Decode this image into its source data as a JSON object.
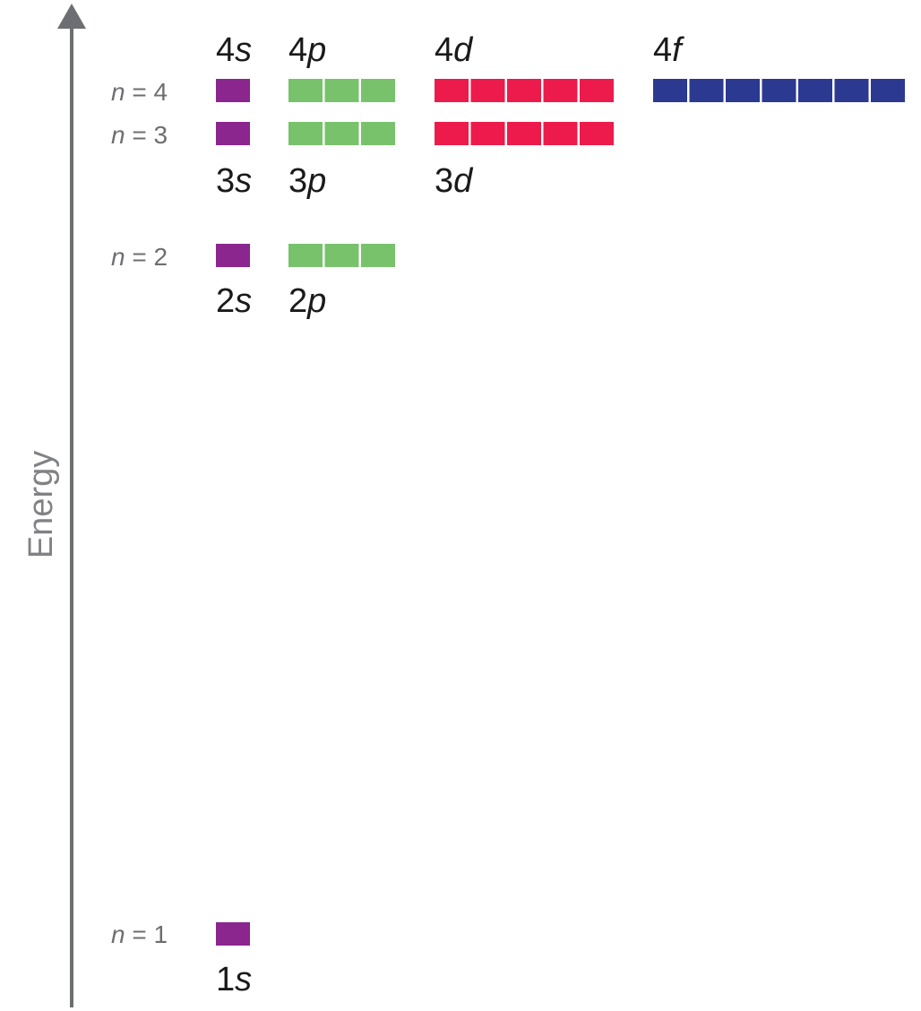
{
  "axis": {
    "title": "Energy"
  },
  "colors": {
    "axis": "#6d6e71",
    "s": "#8b268e",
    "p": "#78c26c",
    "d": "#ec1b4b",
    "f": "#2b3990"
  },
  "levels": [
    {
      "n": "4",
      "label_var": "n",
      "label_eq": " = 4"
    },
    {
      "n": "3",
      "label_var": "n",
      "label_eq": " = 3"
    },
    {
      "n": "2",
      "label_var": "n",
      "label_eq": " = 2"
    },
    {
      "n": "1",
      "label_var": "n",
      "label_eq": " = 1"
    }
  ],
  "subshells": [
    {
      "name": "4s",
      "n": "4",
      "l": "s",
      "orbitals": 1
    },
    {
      "name": "4p",
      "n": "4",
      "l": "p",
      "orbitals": 3
    },
    {
      "name": "4d",
      "n": "4",
      "l": "d",
      "orbitals": 5
    },
    {
      "name": "4f",
      "n": "4",
      "l": "f",
      "orbitals": 7
    },
    {
      "name": "3s",
      "n": "3",
      "l": "s",
      "orbitals": 1
    },
    {
      "name": "3p",
      "n": "3",
      "l": "p",
      "orbitals": 3
    },
    {
      "name": "3d",
      "n": "3",
      "l": "d",
      "orbitals": 5
    },
    {
      "name": "2s",
      "n": "2",
      "l": "s",
      "orbitals": 1
    },
    {
      "name": "2p",
      "n": "2",
      "l": "p",
      "orbitals": 3
    },
    {
      "name": "1s",
      "n": "1",
      "l": "s",
      "orbitals": 1
    }
  ]
}
